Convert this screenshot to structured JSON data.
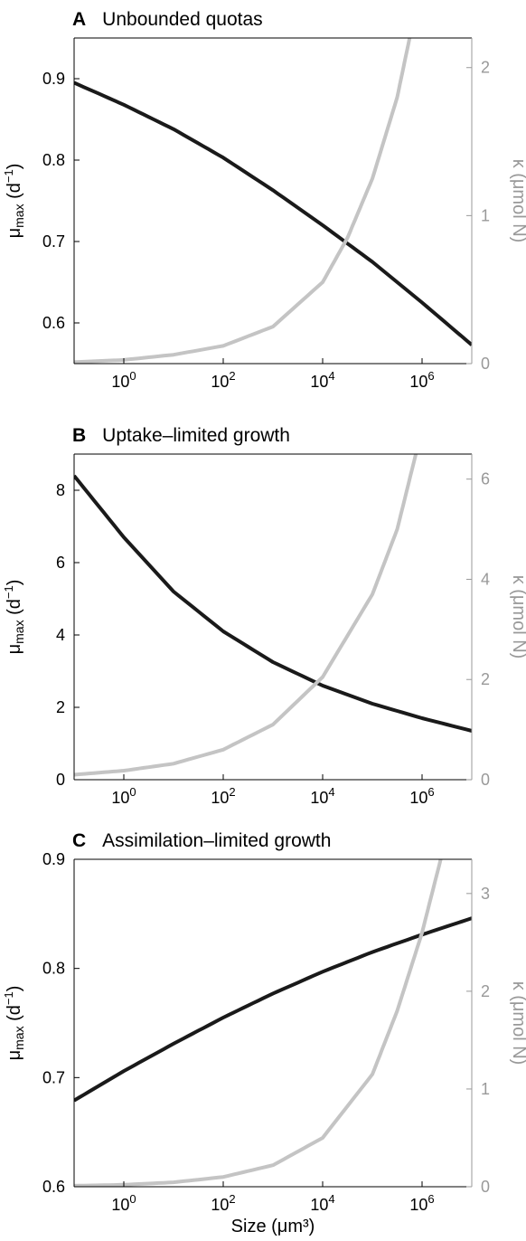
{
  "colors": {
    "black_series": "#1a1a1a",
    "grey_series": "#c4c4c4",
    "axis": "#000000",
    "right_axis": "#999999"
  },
  "x_label": "Size (μm³)",
  "chart_data": [
    {
      "type": "line",
      "panel": "A",
      "title": "Unbounded quotas",
      "xscale": "log",
      "xlim": [
        0.1,
        10000000
      ],
      "x_ticks": [
        {
          "value": 1,
          "base": "10",
          "exp": "0"
        },
        {
          "value": 100,
          "base": "10",
          "exp": "2"
        },
        {
          "value": 10000,
          "base": "10",
          "exp": "4"
        },
        {
          "value": 1000000,
          "base": "10",
          "exp": "6"
        }
      ],
      "ylabel_left": {
        "main": "μ",
        "sub": "max",
        "unit": " (d",
        "sup": "−1",
        "close": ")"
      },
      "ylabel_right": "κ (μmol N)",
      "ylim_left": [
        0.55,
        0.95
      ],
      "yticks_left": [
        "0.6",
        "0.7",
        "0.8",
        "0.9"
      ],
      "ylim_right": [
        0,
        2.2
      ],
      "yticks_right": [
        "0",
        "1",
        "2"
      ],
      "series": [
        {
          "axis": "left",
          "color": "#1a1a1a",
          "x": [
            0.1,
            1,
            10,
            100,
            1000,
            10000,
            100000,
            1000000,
            10000000
          ],
          "y": [
            0.895,
            0.868,
            0.838,
            0.803,
            0.763,
            0.72,
            0.675,
            0.625,
            0.573
          ]
        },
        {
          "axis": "right",
          "color": "#c4c4c4",
          "x": [
            0.1,
            1,
            10,
            100,
            1000,
            10000,
            31623,
            100000,
            316228,
            562000
          ],
          "y": [
            0.01,
            0.025,
            0.06,
            0.12,
            0.25,
            0.55,
            0.85,
            1.25,
            1.8,
            2.2
          ]
        }
      ]
    },
    {
      "type": "line",
      "panel": "B",
      "title": "Uptake–limited growth",
      "xscale": "log",
      "xlim": [
        0.1,
        10000000
      ],
      "x_ticks": [
        {
          "value": 1,
          "base": "10",
          "exp": "0"
        },
        {
          "value": 100,
          "base": "10",
          "exp": "2"
        },
        {
          "value": 10000,
          "base": "10",
          "exp": "4"
        },
        {
          "value": 1000000,
          "base": "10",
          "exp": "6"
        }
      ],
      "ylabel_left": {
        "main": "μ",
        "sub": "max",
        "unit": " (d",
        "sup": "−1",
        "close": ")"
      },
      "ylabel_right": "κ (μmol N)",
      "ylim_left": [
        0,
        9
      ],
      "yticks_left": [
        "0",
        "2",
        "4",
        "6",
        "8"
      ],
      "ylim_right": [
        0,
        6.5
      ],
      "yticks_right": [
        "0",
        "2",
        "4",
        "6"
      ],
      "series": [
        {
          "axis": "left",
          "color": "#1a1a1a",
          "x": [
            0.1,
            1,
            10,
            100,
            1000,
            10000,
            100000,
            1000000,
            10000000
          ],
          "y": [
            8.4,
            6.7,
            5.2,
            4.1,
            3.25,
            2.6,
            2.1,
            1.7,
            1.35
          ]
        },
        {
          "axis": "right",
          "color": "#c4c4c4",
          "x": [
            0.1,
            1,
            10,
            100,
            1000,
            10000,
            100000,
            316228,
            750000
          ],
          "y": [
            0.1,
            0.18,
            0.32,
            0.6,
            1.1,
            2.05,
            3.7,
            5.0,
            6.5
          ]
        }
      ]
    },
    {
      "type": "line",
      "panel": "C",
      "title": "Assimilation–limited growth",
      "xscale": "log",
      "xlim": [
        0.1,
        10000000
      ],
      "x_ticks": [
        {
          "value": 1,
          "base": "10",
          "exp": "0"
        },
        {
          "value": 100,
          "base": "10",
          "exp": "2"
        },
        {
          "value": 10000,
          "base": "10",
          "exp": "4"
        },
        {
          "value": 1000000,
          "base": "10",
          "exp": "6"
        }
      ],
      "ylabel_left": {
        "main": "μ",
        "sub": "max",
        "unit": " (d",
        "sup": "−1",
        "close": ")"
      },
      "ylabel_right": "κ (μmol N)",
      "ylim_left": [
        0.6,
        0.9
      ],
      "yticks_left": [
        "0.6",
        "0.7",
        "0.8",
        "0.9"
      ],
      "ylim_right": [
        0,
        3.35
      ],
      "yticks_right": [
        "0",
        "1",
        "2",
        "3"
      ],
      "series": [
        {
          "axis": "left",
          "color": "#1a1a1a",
          "x": [
            0.1,
            1,
            10,
            100,
            1000,
            10000,
            100000,
            1000000,
            10000000
          ],
          "y": [
            0.679,
            0.706,
            0.731,
            0.755,
            0.777,
            0.797,
            0.815,
            0.831,
            0.846
          ]
        },
        {
          "axis": "right",
          "color": "#c4c4c4",
          "x": [
            0.1,
            1,
            10,
            100,
            1000,
            10000,
            100000,
            316228,
            1000000,
            2370000
          ],
          "y": [
            0.01,
            0.02,
            0.045,
            0.1,
            0.22,
            0.5,
            1.15,
            1.8,
            2.6,
            3.35
          ]
        }
      ]
    }
  ]
}
